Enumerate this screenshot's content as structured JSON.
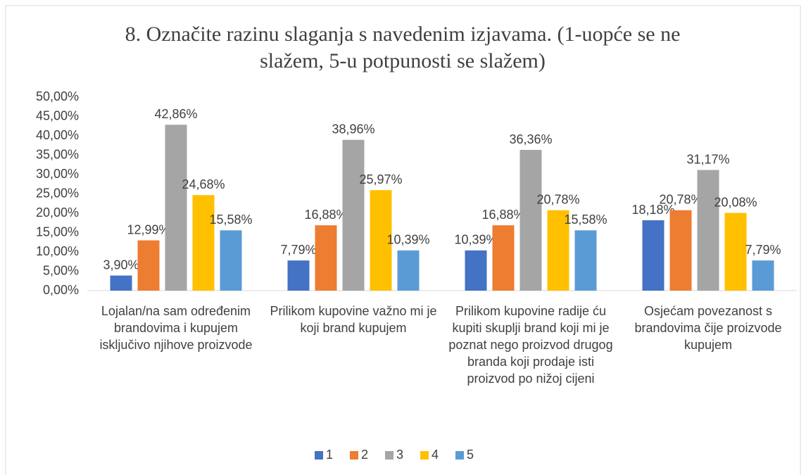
{
  "chart_data": {
    "type": "bar",
    "title": "8. Označite razinu slaganja s navedenim izjavama. (1-uopće se ne slažem, 5-u potpunosti se slažem)",
    "categories": [
      "Lojalan/na sam određenim brandovima i kupujem isključivo njihove proizvode",
      "Prilikom kupovine važno mi je koji brand kupujem",
      "Prilikom kupovine radije ću kupiti skuplji brand koji mi je poznat nego proizvod drugog branda koji prodaje isti proizvod po nižoj cijeni",
      "Osjećam povezanost s brandovima čije proizvode kupujem"
    ],
    "series": [
      {
        "name": "1",
        "color": "#4472c4",
        "values": [
          3.9,
          7.79,
          10.39,
          18.18
        ],
        "value_labels": [
          "3,90%",
          "7,79%",
          "10,39%",
          "18,18%"
        ]
      },
      {
        "name": "2",
        "color": "#ed7d31",
        "values": [
          12.99,
          16.88,
          16.88,
          20.78
        ],
        "value_labels": [
          "12,99%",
          "16,88%",
          "16,88%",
          "20,78%"
        ]
      },
      {
        "name": "3",
        "color": "#a5a5a5",
        "values": [
          42.86,
          38.96,
          36.36,
          31.17
        ],
        "value_labels": [
          "42,86%",
          "38,96%",
          "36,36%",
          "31,17%"
        ]
      },
      {
        "name": "4",
        "color": "#ffc000",
        "values": [
          24.68,
          25.97,
          20.78,
          20.08
        ],
        "value_labels": [
          "24,68%",
          "25,97%",
          "20,78%",
          "20,08%"
        ]
      },
      {
        "name": "5",
        "color": "#5b9bd5",
        "values": [
          15.58,
          10.39,
          15.58,
          7.79
        ],
        "value_labels": [
          "15,58%",
          "10,39%",
          "15,58%",
          "7,79%"
        ]
      }
    ],
    "ylim": [
      0,
      50
    ],
    "yticks": [
      {
        "value": 0,
        "label": "0,00%"
      },
      {
        "value": 5,
        "label": "5,00%"
      },
      {
        "value": 10,
        "label": "10,00%"
      },
      {
        "value": 15,
        "label": "15,00%"
      },
      {
        "value": 20,
        "label": "20,00%"
      },
      {
        "value": 25,
        "label": "25,00%"
      },
      {
        "value": 30,
        "label": "30,00%"
      },
      {
        "value": 35,
        "label": "35,00%"
      },
      {
        "value": 40,
        "label": "40,00%"
      },
      {
        "value": 45,
        "label": "45,00%"
      },
      {
        "value": 50,
        "label": "50,00%"
      }
    ],
    "grid": false,
    "legend": "bottom"
  }
}
